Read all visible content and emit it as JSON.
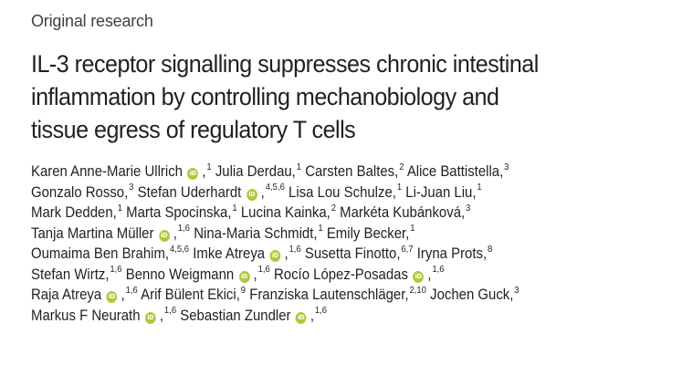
{
  "section_label": "Original research",
  "title_lines": [
    "IL-3 receptor signalling suppresses chronic intestinal",
    "inflammation by controlling mechanobiology and",
    "tissue egress of regulatory T cells"
  ],
  "orcid_icon_text": "iD",
  "orcid_icon_color": "#b0c93a",
  "author_lines": [
    [
      {
        "name": "Karen Anne-Marie Ullrich",
        "orcid": true,
        "sup": "1"
      },
      {
        "name": "Julia Derdau,",
        "orcid": false,
        "sup": "1"
      },
      {
        "name": "Carsten Baltes,",
        "orcid": false,
        "sup": "2"
      },
      {
        "name": "Alice Battistella,",
        "orcid": false,
        "sup": "3"
      }
    ],
    [
      {
        "name": "Gonzalo Rosso,",
        "orcid": false,
        "sup": "3"
      },
      {
        "name": "Stefan Uderhardt",
        "orcid": true,
        "sup": "4,5,6"
      },
      {
        "name": "Lisa Lou Schulze,",
        "orcid": false,
        "sup": "1"
      },
      {
        "name": "Li-Juan Liu,",
        "orcid": false,
        "sup": "1"
      }
    ],
    [
      {
        "name": "Mark Dedden,",
        "orcid": false,
        "sup": "1"
      },
      {
        "name": "Marta Spocinska,",
        "orcid": false,
        "sup": "1"
      },
      {
        "name": "Lucina Kainka,",
        "orcid": false,
        "sup": "2"
      },
      {
        "name": "Markéta Kubánková,",
        "orcid": false,
        "sup": "3"
      }
    ],
    [
      {
        "name": "Tanja Martina Müller",
        "orcid": true,
        "sup": "1,6"
      },
      {
        "name": "Nina-Maria Schmidt,",
        "orcid": false,
        "sup": "1"
      },
      {
        "name": "Emily Becker,",
        "orcid": false,
        "sup": "1"
      }
    ],
    [
      {
        "name": "Oumaima Ben Brahim,",
        "orcid": false,
        "sup": "4,5,6"
      },
      {
        "name": "Imke Atreya",
        "orcid": true,
        "sup": "1,6"
      },
      {
        "name": "Susetta Finotto,",
        "orcid": false,
        "sup": "6,7"
      },
      {
        "name": "Iryna Prots,",
        "orcid": false,
        "sup": "8"
      }
    ],
    [
      {
        "name": "Stefan Wirtz,",
        "orcid": false,
        "sup": "1,6"
      },
      {
        "name": "Benno Weigmann",
        "orcid": true,
        "sup": "1,6"
      },
      {
        "name": "Rocío López-Posadas",
        "orcid": true,
        "sup": "1,6"
      }
    ],
    [
      {
        "name": "Raja Atreya",
        "orcid": true,
        "sup": "1,6"
      },
      {
        "name": "Arif Bülent Ekici,",
        "orcid": false,
        "sup": "9"
      },
      {
        "name": "Franziska Lautenschläger,",
        "orcid": false,
        "sup": "2,10"
      },
      {
        "name": "Jochen Guck,",
        "orcid": false,
        "sup": "3"
      }
    ],
    [
      {
        "name": "Markus F Neurath",
        "orcid": true,
        "sup": "1,6"
      },
      {
        "name": "Sebastian Zundler",
        "orcid": true,
        "sup": "1,6"
      }
    ]
  ]
}
